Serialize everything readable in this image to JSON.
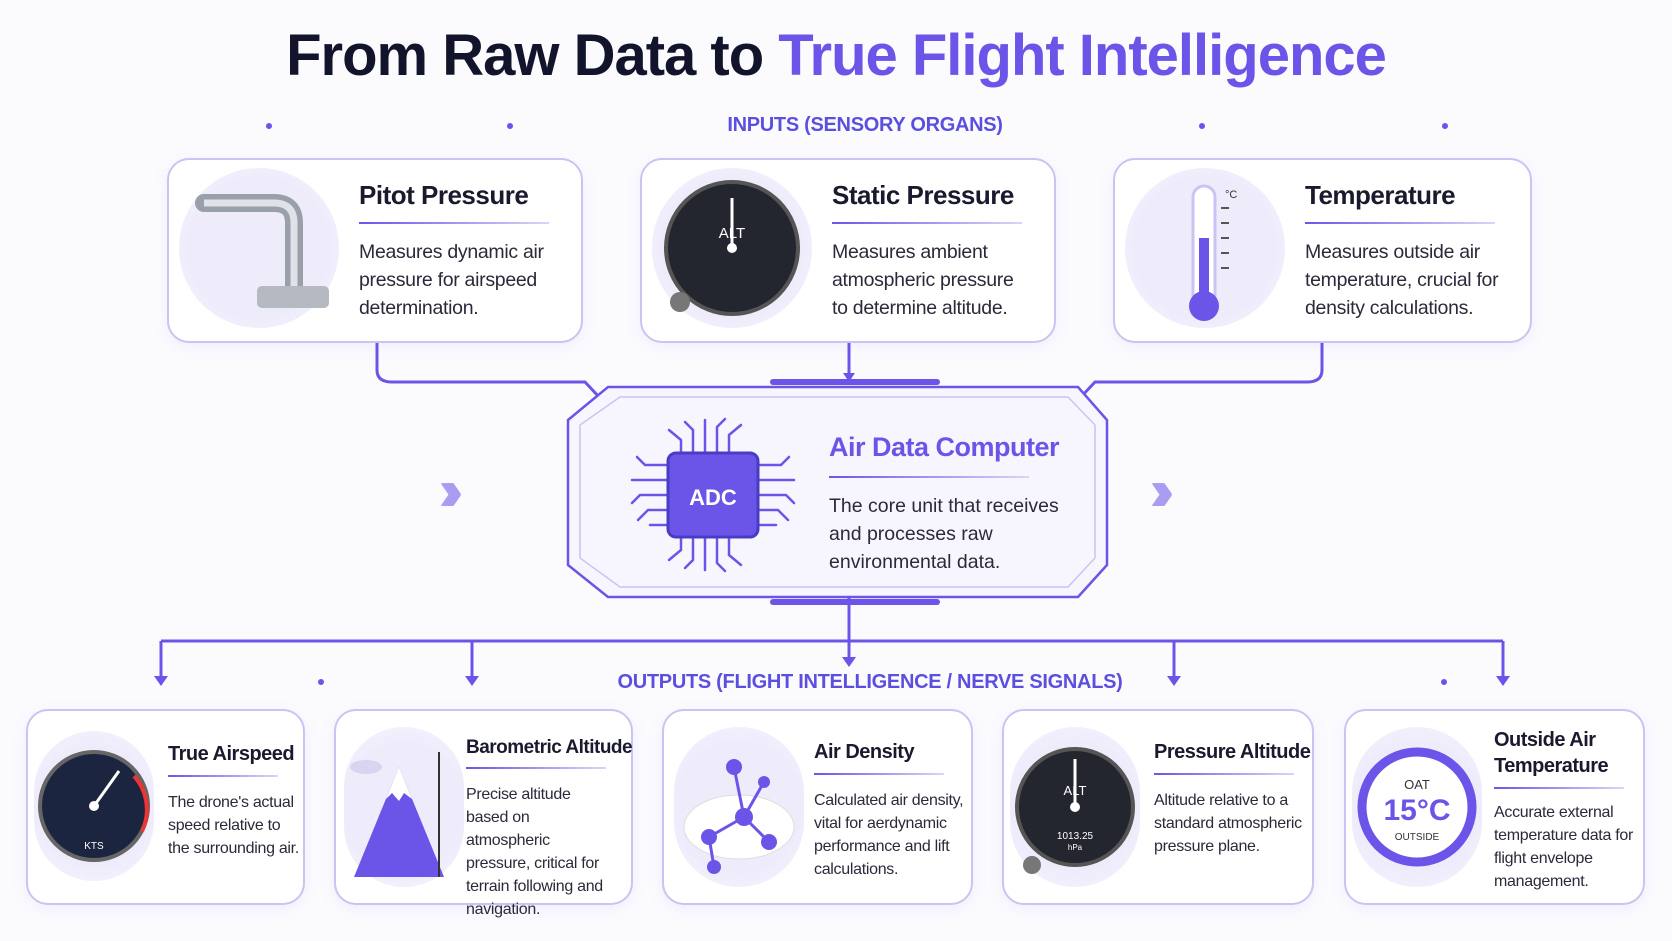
{
  "title": {
    "part1": "From Raw Data to ",
    "part2": "True Flight Intelligence"
  },
  "inputs_label": "INPUTS (SENSORY ORGANS)",
  "outputs_label": "OUTPUTS (FLIGHT INTELLIGENCE / NERVE SIGNALS)",
  "inputs": [
    {
      "title": "Pitot Pressure",
      "desc": "Measures dynamic air pressure for airspeed determination.",
      "icon": "pitot-tube-icon"
    },
    {
      "title": "Static Pressure",
      "desc": "Measures ambient atmospheric pressure to determine altitude.",
      "icon": "altimeter-gauge-icon",
      "gauge_label": "ALT"
    },
    {
      "title": "Temperature",
      "desc": "Measures outside air temperature, crucial for density calculations.",
      "icon": "thermometer-icon",
      "unit": "°C"
    }
  ],
  "adc": {
    "chip_label": "ADC",
    "title": "Air Data Computer",
    "desc": "The core unit that receives and processes raw environmental data."
  },
  "outputs": [
    {
      "title": "True Airspeed",
      "desc": "The drone's actual speed relative to the surrounding air.",
      "icon": "airspeed-gauge-icon",
      "gauge_unit": "KTS"
    },
    {
      "title": "Barometric Altitude",
      "desc": "Precise altitude based on atmospheric pressure, critical for terrain following and navigation.",
      "icon": "mountain-icon"
    },
    {
      "title": "Air Density",
      "desc": "Calculated air density, vital for aerdynamic performance and lift calculations.",
      "icon": "molecule-cloud-icon"
    },
    {
      "title": "Pressure Altitude",
      "desc": "Altitude relative to a standard atmospheric pressure plane.",
      "icon": "altimeter-gauge-icon",
      "gauge_label": "ALT",
      "gauge_value": "1013.25",
      "gauge_unit": "hPa"
    },
    {
      "title": "Outside Air Temperature",
      "desc": "Accurate external temperature data for flight envelope management.",
      "icon": "oat-ring-icon",
      "ring_top": "OAT",
      "ring_value": "15°C",
      "ring_bottom": "OUTSIDE"
    }
  ],
  "colors": {
    "accent": "#6a55e8",
    "dark": "#12142b",
    "border": "#c9c4f2"
  }
}
